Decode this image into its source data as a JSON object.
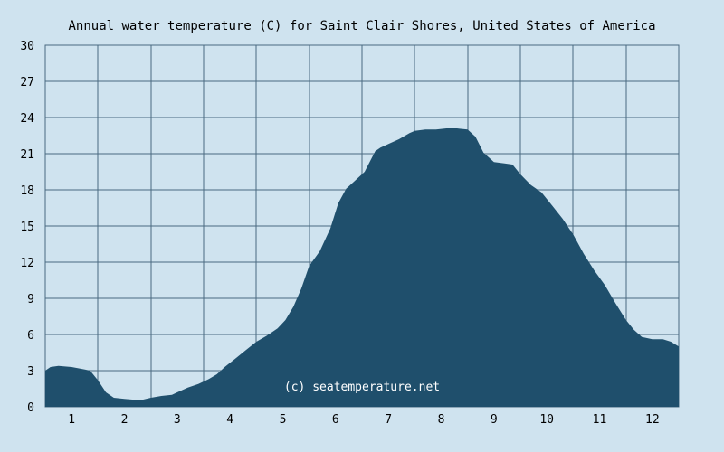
{
  "chart_data": {
    "type": "area",
    "title": "Annual water temperature (C) for Saint Clair Shores, United States of America",
    "xlabel": "",
    "ylabel": "",
    "x_tick_labels": [
      "1",
      "2",
      "3",
      "4",
      "5",
      "6",
      "7",
      "8",
      "9",
      "10",
      "11",
      "12"
    ],
    "y_tick_labels": [
      "0",
      "3",
      "6",
      "9",
      "12",
      "15",
      "18",
      "21",
      "24",
      "27",
      "30"
    ],
    "xlim": [
      0.5,
      12.5
    ],
    "ylim": [
      0,
      30
    ],
    "grid": true,
    "legend": "none",
    "annotation": "(c) seatemperature.net",
    "colors": {
      "background": "#cfe3ef",
      "area_fill": "#1f4f6c",
      "grid": "#4a6a80"
    },
    "series": [
      {
        "x": [
          0.5,
          0.6,
          0.75,
          1.0,
          1.25,
          1.35,
          1.5,
          1.65,
          1.8,
          2.0,
          2.15,
          2.3,
          2.5,
          2.7,
          2.9,
          3.0,
          3.2,
          3.4,
          3.6,
          3.75,
          3.9,
          4.1,
          4.3,
          4.5,
          4.7,
          4.9,
          5.05,
          5.2,
          5.35,
          5.5,
          5.7,
          5.9,
          6.05,
          6.2,
          6.35,
          6.55,
          6.75,
          6.85,
          7.0,
          7.2,
          7.4,
          7.5,
          7.7,
          7.9,
          8.1,
          8.3,
          8.5,
          8.65,
          8.8,
          9.0,
          9.2,
          9.35,
          9.5,
          9.7,
          9.9,
          10.1,
          10.3,
          10.5,
          10.7,
          10.9,
          11.1,
          11.3,
          11.5,
          11.65,
          11.8,
          12.0,
          12.2,
          12.35,
          12.5
        ],
        "values": [
          3.0,
          3.3,
          3.4,
          3.3,
          3.1,
          3.0,
          2.2,
          1.2,
          0.75,
          0.65,
          0.6,
          0.55,
          0.75,
          0.9,
          1.0,
          1.2,
          1.6,
          1.9,
          2.3,
          2.7,
          3.3,
          4.0,
          4.7,
          5.4,
          5.9,
          6.5,
          7.2,
          8.3,
          9.8,
          11.7,
          12.9,
          14.8,
          16.9,
          18.1,
          18.7,
          19.5,
          21.2,
          21.5,
          21.8,
          22.2,
          22.7,
          22.9,
          23.0,
          23.0,
          23.1,
          23.1,
          23.0,
          22.4,
          21.1,
          20.3,
          20.2,
          20.1,
          19.3,
          18.4,
          17.8,
          16.7,
          15.6,
          14.3,
          12.7,
          11.3,
          10.1,
          8.6,
          7.2,
          6.4,
          5.8,
          5.6,
          5.6,
          5.4,
          5.0
        ]
      }
    ]
  }
}
